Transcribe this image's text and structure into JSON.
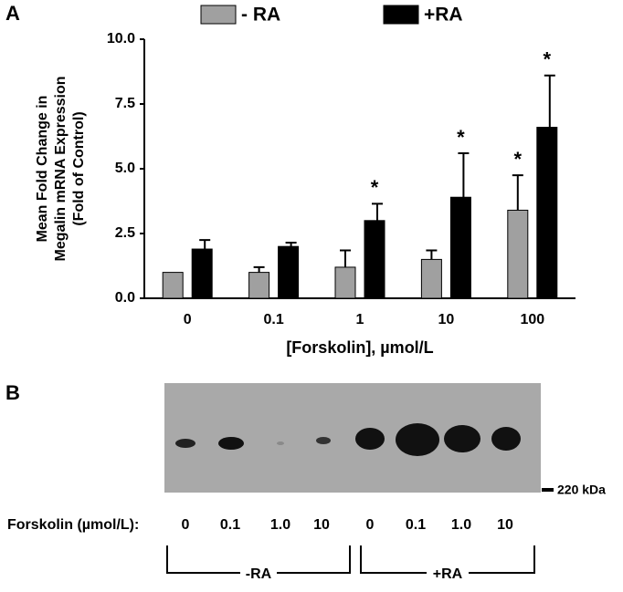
{
  "panel_a": "A",
  "panel_b": "B",
  "chart_data": {
    "type": "bar",
    "ylabel": [
      "Mean Fold Change in",
      "Megalin mRNA Expression",
      "(Fold of Control)"
    ],
    "xlabel": "[Forskolin], µmol/L",
    "categories": [
      "0",
      "0.1",
      "1",
      "10",
      "100"
    ],
    "series": [
      {
        "name": "- RA",
        "color": "#a0a0a0",
        "values": [
          1.0,
          1.0,
          1.2,
          1.5,
          3.4
        ],
        "errors": [
          0,
          0.2,
          0.65,
          0.35,
          1.35
        ],
        "significance": [
          null,
          null,
          null,
          null,
          "*"
        ]
      },
      {
        "name": "+RA",
        "color": "#000000",
        "values": [
          1.9,
          2.0,
          3.0,
          3.9,
          6.6
        ],
        "errors": [
          0.35,
          0.15,
          0.65,
          1.7,
          2.0
        ],
        "significance": [
          null,
          null,
          "*",
          "*",
          "*"
        ]
      }
    ],
    "ylim": [
      0,
      10
    ],
    "yticks": [
      {
        "value": 0,
        "label": "0.0"
      },
      2.5,
      {
        "value": 5,
        "label": "5.0"
      },
      7.5,
      {
        "value": 10,
        "label": "10.0"
      }
    ]
  },
  "blot": {
    "marker": "220 kDa",
    "row_label": "Forskolin (µmol/L):",
    "lanes": [
      "0",
      "0.1",
      "1.0",
      "10",
      "0",
      "0.1",
      "1.0",
      "10"
    ],
    "groups": [
      "-RA",
      "+RA"
    ]
  }
}
